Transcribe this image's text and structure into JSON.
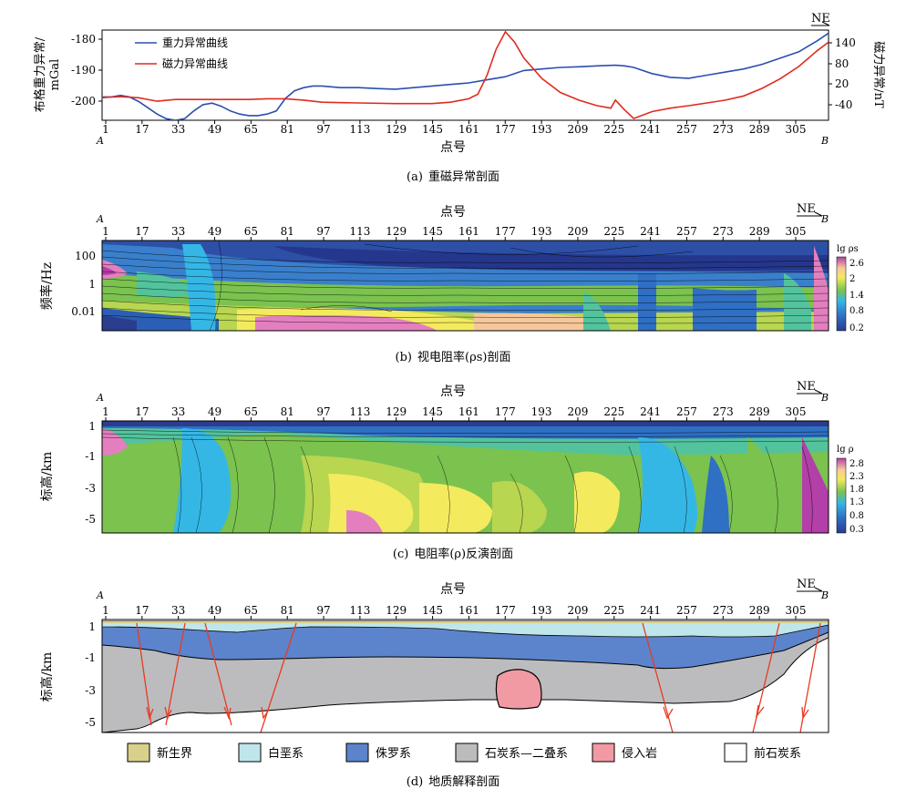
{
  "x_ticks": [
    "1",
    "17",
    "33",
    "49",
    "65",
    "81",
    "97",
    "113",
    "129",
    "145",
    "161",
    "177",
    "193",
    "209",
    "225",
    "241",
    "257",
    "273",
    "289",
    "305"
  ],
  "end_labels": {
    "start": "A",
    "end": "B",
    "direction": "NE"
  },
  "x_axis_label": "点号",
  "panel_a": {
    "caption_tag": "(a)",
    "caption_text": "重磁异常剖面",
    "left_label_line1": "布格重力异常/",
    "left_label_line2": "mGal",
    "right_label": "磁力异常/nT",
    "left_ticks": [
      "-180",
      "-190",
      "-200"
    ],
    "right_ticks": [
      "140",
      "80",
      "20",
      "-40"
    ],
    "legend": [
      {
        "name": "重力异常曲线",
        "color": "#2b4fb0"
      },
      {
        "name": "磁力异常曲线",
        "color": "#e02b20"
      }
    ],
    "chart_data": {
      "type": "line",
      "xlim": [
        1,
        318
      ],
      "ylim_left": [
        -206,
        -177
      ],
      "ylim_right": [
        -70,
        190
      ],
      "series": [
        {
          "name": "重力异常曲线",
          "axis": "left",
          "x": [
            1,
            5,
            9,
            13,
            17,
            21,
            25,
            29,
            33,
            37,
            41,
            45,
            49,
            53,
            57,
            61,
            65,
            69,
            73,
            77,
            81,
            85,
            89,
            93,
            97,
            105,
            113,
            121,
            129,
            137,
            145,
            153,
            161,
            169,
            177,
            185,
            193,
            201,
            209,
            217,
            225,
            229,
            233,
            241,
            249,
            257,
            265,
            273,
            281,
            289,
            297,
            305,
            313,
            318
          ],
          "y": [
            -198.5,
            -198.5,
            -198,
            -198.5,
            -200,
            -202,
            -204,
            -205.5,
            -206,
            -205.5,
            -203,
            -201,
            -200.5,
            -201.5,
            -203,
            -204,
            -204.5,
            -204.5,
            -204,
            -203,
            -199,
            -196.5,
            -195.5,
            -195,
            -195,
            -195.5,
            -195.5,
            -195.8,
            -196,
            -195.5,
            -195,
            -194.5,
            -194,
            -193,
            -192,
            -190,
            -189.5,
            -189,
            -188.8,
            -188.5,
            -188.3,
            -188.5,
            -189,
            -191,
            -192.2,
            -192.5,
            -191.5,
            -190.5,
            -189.5,
            -188,
            -186,
            -184,
            -180.5,
            -178
          ]
        },
        {
          "name": "磁力异常曲线",
          "axis": "right",
          "x": [
            1,
            5,
            9,
            17,
            25,
            33,
            41,
            49,
            57,
            65,
            73,
            81,
            89,
            97,
            113,
            129,
            145,
            153,
            161,
            165,
            169,
            173,
            177,
            181,
            185,
            193,
            201,
            209,
            217,
            223,
            225,
            229,
            233,
            237,
            241,
            249,
            257,
            265,
            273,
            281,
            289,
            297,
            305,
            313,
            318
          ],
          "y": [
            -5,
            -3,
            -2,
            -5,
            -15,
            -10,
            -10,
            -10,
            -10,
            -10,
            -8,
            -8,
            -12,
            -18,
            -20,
            -22,
            -22,
            -18,
            -8,
            5,
            60,
            135,
            185,
            155,
            110,
            50,
            10,
            -12,
            -28,
            -35,
            -12,
            -40,
            -65,
            -55,
            -45,
            -35,
            -28,
            -20,
            -12,
            0,
            22,
            50,
            85,
            130,
            155
          ]
        }
      ]
    }
  },
  "panel_b": {
    "caption_tag": "(b)",
    "caption_text": "视电阻率(ρs)剖面",
    "y_label": "频率/Hz",
    "y_ticks": [
      "100",
      "1",
      "0.01"
    ],
    "colorbar_title": "lg ρs",
    "colorbar_ticks": [
      "2.6",
      "2",
      "1.4",
      "0.8",
      "0.2"
    ]
  },
  "panel_c": {
    "caption_tag": "(c)",
    "caption_text": "电阻率(ρ)反演剖面",
    "y_label": "标高/km",
    "y_ticks": [
      "1",
      "-1",
      "-3",
      "-5"
    ],
    "colorbar_title": "lg ρ",
    "colorbar_ticks": [
      "2.8",
      "2.3",
      "1.8",
      "1.3",
      "0.8",
      "0.3"
    ]
  },
  "panel_d": {
    "caption_tag": "(d)",
    "caption_text": "地质解释剖面",
    "y_label": "标高/km",
    "y_ticks": [
      "1",
      "-1",
      "-3",
      "-5"
    ]
  },
  "geology_legend": [
    {
      "name": "新生界",
      "color": "#d9d18b"
    },
    {
      "name": "白垩系",
      "color": "#bfe6ea"
    },
    {
      "name": "侏罗系",
      "color": "#5b84cc"
    },
    {
      "name": "石炭系—二叠系",
      "color": "#bcbcbe"
    },
    {
      "name": "侵入岩",
      "color": "#f29aa3"
    },
    {
      "name": "前石炭系",
      "color": "#ffffff"
    }
  ],
  "colors": {
    "fault": "#e83a22",
    "colormap": [
      "#2a3d8f",
      "#2f6fc4",
      "#35b7e6",
      "#52c39d",
      "#7bc24f",
      "#b8d650",
      "#f4ea5e",
      "#f6c79a",
      "#e47fbf",
      "#b33fa8"
    ]
  }
}
